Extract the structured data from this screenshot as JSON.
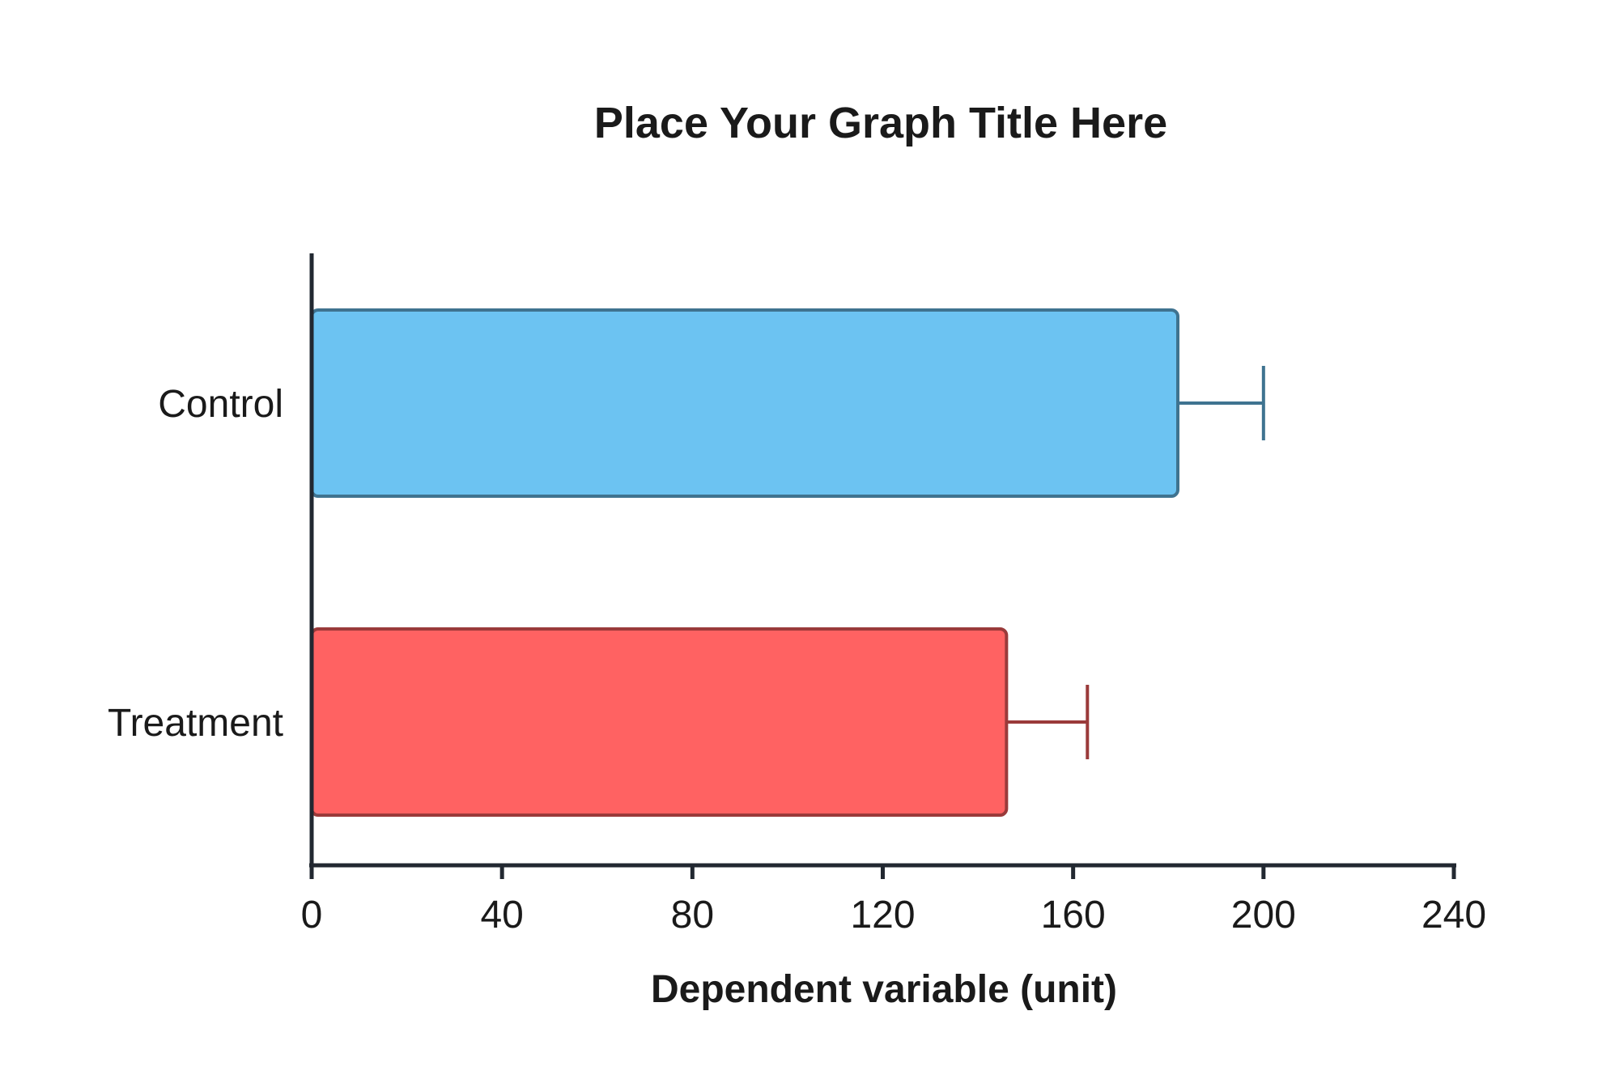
{
  "chart_data": {
    "type": "bar",
    "orientation": "horizontal",
    "title": "Place Your Graph Title Here",
    "xlabel": "Dependent variable (unit)",
    "ylabel": "",
    "xlim": [
      0,
      240
    ],
    "x_ticks": [
      "0",
      "40",
      "80",
      "120",
      "160",
      "200",
      "240"
    ],
    "categories": [
      "Control",
      "Treatment"
    ],
    "values": [
      182,
      146
    ],
    "error": [
      18,
      17
    ],
    "colors": {
      "Control": {
        "fill": "#6cc3f2",
        "stroke": "#3f7390"
      },
      "Treatment": {
        "fill": "#ff6262",
        "stroke": "#9a3a3a"
      }
    },
    "grid": false,
    "legend": "none"
  }
}
